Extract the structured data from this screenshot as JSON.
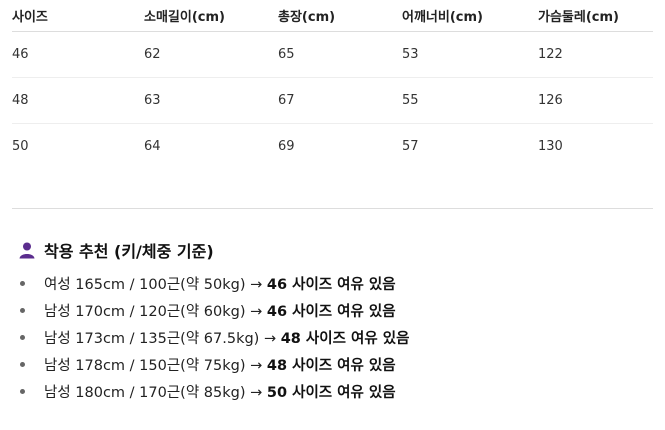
{
  "table": {
    "headers": [
      "사이즈",
      "소매길이(cm)",
      "총장(cm)",
      "어깨너비(cm)",
      "가슴둘레(cm)"
    ],
    "rows": [
      [
        "46",
        "62",
        "65",
        "53",
        "122"
      ],
      [
        "48",
        "63",
        "67",
        "55",
        "126"
      ],
      [
        "50",
        "64",
        "69",
        "57",
        "130"
      ]
    ]
  },
  "recommend": {
    "icon": "person-icon",
    "icon_color": "#5b2d8e",
    "title": "착용 추천 (키/체중 기준)",
    "items": [
      {
        "text": "여성 165cm / 100근(약 50kg) →",
        "size": "46 사이즈 여유 있음"
      },
      {
        "text": "남성 170cm / 120근(약 60kg) →",
        "size": "46 사이즈 여유 있음"
      },
      {
        "text": "남성 173cm / 135근(약 67.5kg) →",
        "size": "48 사이즈 여유 있음"
      },
      {
        "text": "남성 178cm / 150근(약 75kg) →",
        "size": "48 사이즈 여유 있음"
      },
      {
        "text": "남성 180cm / 170근(약 85kg) →",
        "size": "50 사이즈 여유 있음"
      }
    ]
  }
}
